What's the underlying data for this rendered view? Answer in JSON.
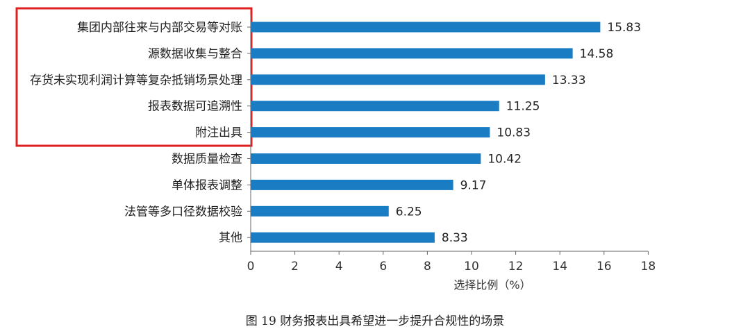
{
  "chart_data": {
    "type": "bar",
    "orientation": "horizontal",
    "categories": [
      "集团内部往来与内部交易等对账",
      "源数据收集与整合",
      "存货未实现利润计算等复杂抵销场景处理",
      "报表数据可追溯性",
      "附注出具",
      "数据质量检查",
      "单体报表调整",
      "法管等多口径数据校验",
      "其他"
    ],
    "values": [
      15.83,
      14.58,
      13.33,
      11.25,
      10.83,
      10.42,
      9.17,
      6.25,
      8.33
    ],
    "value_labels": [
      "15.83",
      "14.58",
      "13.33",
      "11.25",
      "10.83",
      "10.42",
      "9.17",
      "6.25",
      "8.33"
    ],
    "xlabel": "选择比例（%）",
    "xlim": [
      0,
      18
    ],
    "xticks": [
      "0",
      "2",
      "4",
      "6",
      "8",
      "10",
      "12",
      "14",
      "16",
      "18"
    ],
    "grid": false,
    "legend": "none",
    "bar_color": "#1a7dc4",
    "highlight_color": "#e02020",
    "caption": "图 19    财务报表出具希望进一步提升合规性的场景"
  }
}
